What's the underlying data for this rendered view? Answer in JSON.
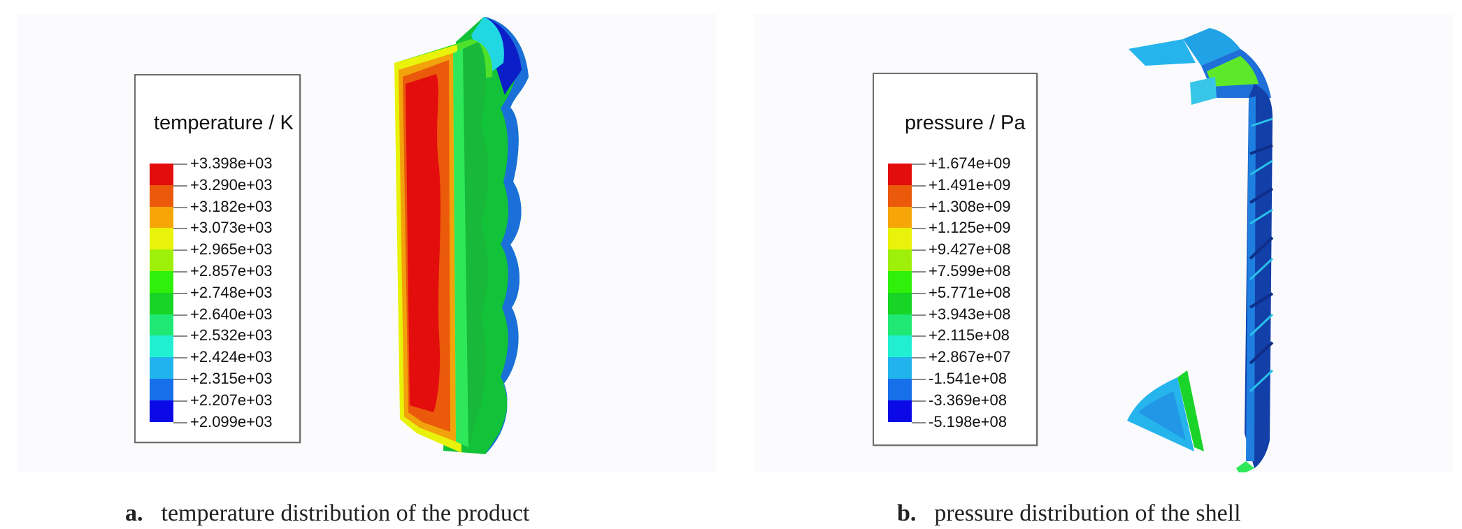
{
  "panels": [
    {
      "id": "a",
      "legend_title": "temperature / K",
      "colors": [
        "#e30d0d",
        "#ea5a0a",
        "#f7a60a",
        "#e8f20a",
        "#9ef00a",
        "#2ff00a",
        "#18d424",
        "#1fe874",
        "#22efd2",
        "#21b4ec",
        "#176fea",
        "#0b0ae6"
      ],
      "values": [
        "+3.398e+03",
        "+3.290e+03",
        "+3.182e+03",
        "+3.073e+03",
        "+2.965e+03",
        "+2.857e+03",
        "+2.748e+03",
        "+2.640e+03",
        "+2.532e+03",
        "+2.424e+03",
        "+2.315e+03",
        "+2.207e+03",
        "+2.099e+03"
      ],
      "caption_letter": "a.",
      "caption_text": "temperature distribution of the product"
    },
    {
      "id": "b",
      "legend_title": "pressure / Pa",
      "colors": [
        "#e30d0d",
        "#ea5a0a",
        "#f7a60a",
        "#e8f20a",
        "#9ef00a",
        "#2ff00a",
        "#18d424",
        "#1fe874",
        "#22efd2",
        "#21b4ec",
        "#176fea",
        "#0b0ae6"
      ],
      "values": [
        "+1.674e+09",
        "+1.491e+09",
        "+1.308e+09",
        "+1.125e+09",
        "+9.427e+08",
        "+7.599e+08",
        "+5.771e+08",
        "+3.943e+08",
        "+2.115e+08",
        "+2.867e+07",
        "-1.541e+08",
        "-3.369e+08",
        "-5.198e+08"
      ],
      "caption_letter": "b.",
      "caption_text": "pressure distribution of the shell"
    }
  ]
}
